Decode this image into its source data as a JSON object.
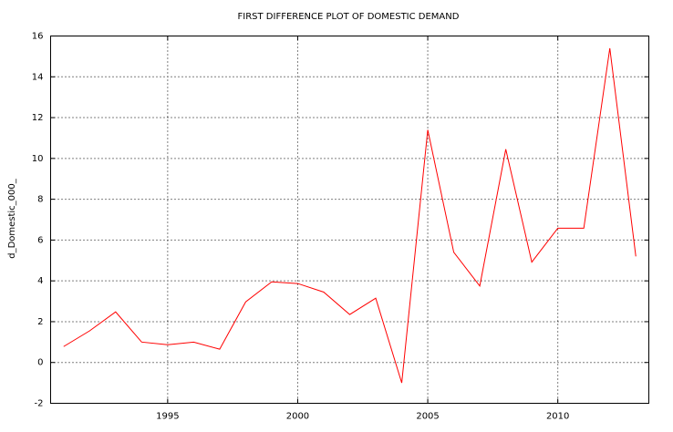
{
  "chart_data": {
    "type": "line",
    "title": "FIRST DIFFERENCE PLOT OF DOMESTIC DEMAND",
    "y_label": "d_Domestic_000_",
    "x": [
      1991,
      1992,
      1993,
      1994,
      1995,
      1996,
      1997,
      1998,
      1999,
      2000,
      2001,
      2002,
      2003,
      2004,
      2005,
      2006,
      2007,
      2008,
      2009,
      2010,
      2011,
      2012,
      2013
    ],
    "values": [
      0.78,
      1.55,
      2.48,
      1.0,
      0.87,
      1.0,
      0.65,
      2.97,
      3.95,
      3.87,
      3.45,
      2.35,
      3.15,
      -1.0,
      11.4,
      5.4,
      3.75,
      10.45,
      4.92,
      6.58,
      6.58,
      15.4,
      5.2
    ],
    "color": "#ff0000",
    "xlim": [
      1990.5,
      2013.5
    ],
    "xticks": [
      1995,
      2000,
      2005,
      2010
    ],
    "ylim": [
      -2,
      16
    ],
    "yticks": [
      -2,
      0,
      2,
      4,
      6,
      8,
      10,
      12,
      14,
      16
    ],
    "grid": true
  }
}
